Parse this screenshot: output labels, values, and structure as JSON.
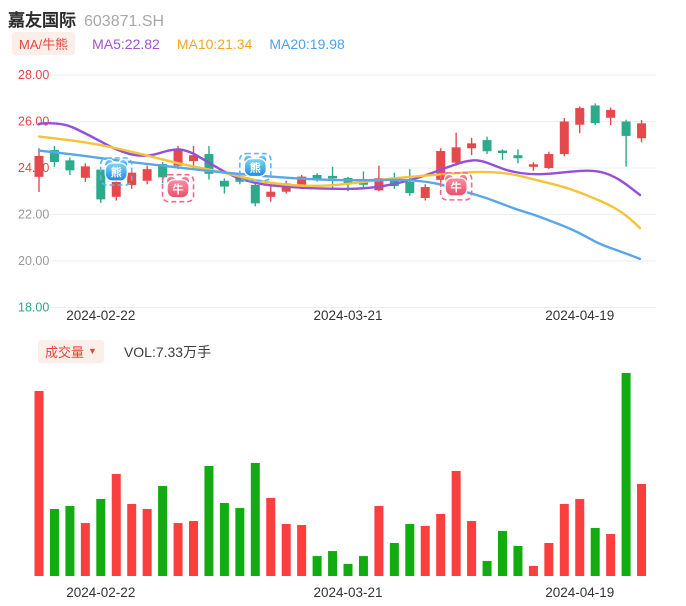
{
  "header": {
    "title": "嘉友国际",
    "code": "603871.SH"
  },
  "indicator_bar": {
    "badge": "MA/牛熊",
    "ma5_label": "MA5:22.82",
    "ma10_label": "MA10:21.34",
    "ma20_label": "MA20:19.98"
  },
  "volume_bar": {
    "badge": "成交量",
    "badge_arrow": "▼",
    "vol_label": "VOL:7.33万手"
  },
  "colors": {
    "candle_up": "#E5494B",
    "candle_down": "#2DA98C",
    "vol_up": "#FB3E3E",
    "vol_down": "#12AC12",
    "ma5": "#9450D8",
    "ma10": "#F4C338",
    "ma20": "#5AA7E8",
    "grid": "#ECEEF1",
    "axis_red": "#E54545",
    "axis_gray": "#999999",
    "axis_green": "#2FA28C",
    "date_label": "#333333",
    "bear_grad_top": "#7DD8FA",
    "bear_grad_bottom": "#1E88E5",
    "bear_frame": "#59B7F2",
    "bull_grad_top": "#F890A6",
    "bull_grad_bottom": "#E94F6B",
    "bull_frame": "#F2688C"
  },
  "chart_data": {
    "type": "candlestick+volume",
    "title": "嘉友国际 603871.SH",
    "price_axis": {
      "ylim": [
        18.0,
        28.0
      ],
      "ticks": [
        {
          "text": "28.00",
          "price": 28.0,
          "tone": "red"
        },
        {
          "text": "26.00",
          "price": 26.0,
          "tone": "red"
        },
        {
          "text": "24.00",
          "price": 24.0,
          "tone": "red"
        },
        {
          "text": "22.00",
          "price": 22.0,
          "tone": "gray"
        },
        {
          "text": "20.00",
          "price": 20.0,
          "tone": "gray"
        },
        {
          "text": "18.00",
          "price": 18.0,
          "tone": "green"
        }
      ]
    },
    "x_axis_labels": [
      {
        "text": "2024-02-22",
        "index": 4
      },
      {
        "text": "2024-03-21",
        "index": 20
      },
      {
        "text": "2024-04-19",
        "index": 35
      }
    ],
    "volume_unit": "万手",
    "last_volume_label": "VOL:7.33万手",
    "candles": [
      {
        "o": 23.62,
        "c": 24.52,
        "h": 24.85,
        "l": 22.97,
        "v": 14.74
      },
      {
        "o": 24.77,
        "c": 24.26,
        "h": 24.95,
        "l": 24.05,
        "v": 5.34
      },
      {
        "o": 24.33,
        "c": 23.9,
        "h": 24.45,
        "l": 23.7,
        "v": 5.58
      },
      {
        "o": 23.58,
        "c": 24.07,
        "h": 24.2,
        "l": 23.4,
        "v": 4.22
      },
      {
        "o": 23.93,
        "c": 22.65,
        "h": 24.05,
        "l": 22.5,
        "v": 6.14
      },
      {
        "o": 22.76,
        "c": 23.4,
        "h": 23.55,
        "l": 22.6,
        "v": 8.13
      },
      {
        "o": 23.27,
        "c": 23.8,
        "h": 24.0,
        "l": 23.1,
        "v": 5.74
      },
      {
        "o": 23.45,
        "c": 23.95,
        "h": 24.1,
        "l": 23.3,
        "v": 5.34
      },
      {
        "o": 24.17,
        "c": 23.6,
        "h": 24.25,
        "l": 23.35,
        "v": 7.17
      },
      {
        "o": 24.1,
        "c": 24.82,
        "h": 24.95,
        "l": 23.95,
        "v": 4.22
      },
      {
        "o": 24.3,
        "c": 24.55,
        "h": 24.95,
        "l": 23.9,
        "v": 4.38
      },
      {
        "o": 24.6,
        "c": 23.75,
        "h": 24.95,
        "l": 23.5,
        "v": 8.77
      },
      {
        "o": 23.45,
        "c": 23.2,
        "h": 23.55,
        "l": 22.9,
        "v": 5.82
      },
      {
        "o": 23.63,
        "c": 23.41,
        "h": 23.7,
        "l": 23.3,
        "v": 5.42
      },
      {
        "o": 23.27,
        "c": 22.48,
        "h": 23.35,
        "l": 22.35,
        "v": 9.01
      },
      {
        "o": 22.76,
        "c": 22.98,
        "h": 23.3,
        "l": 22.55,
        "v": 6.22
      },
      {
        "o": 22.98,
        "c": 23.34,
        "h": 23.45,
        "l": 22.9,
        "v": 4.14
      },
      {
        "o": 23.2,
        "c": 23.63,
        "h": 23.7,
        "l": 23.1,
        "v": 4.06
      },
      {
        "o": 23.7,
        "c": 23.5,
        "h": 23.78,
        "l": 23.42,
        "v": 1.59
      },
      {
        "o": 23.66,
        "c": 23.58,
        "h": 24.05,
        "l": 23.15,
        "v": 1.99
      },
      {
        "o": 23.57,
        "c": 23.36,
        "h": 23.62,
        "l": 23.0,
        "v": 0.96
      },
      {
        "o": 23.5,
        "c": 23.28,
        "h": 23.85,
        "l": 23.18,
        "v": 1.59
      },
      {
        "o": 23.04,
        "c": 23.56,
        "h": 24.1,
        "l": 23.0,
        "v": 5.58
      },
      {
        "o": 23.52,
        "c": 23.22,
        "h": 23.8,
        "l": 23.1,
        "v": 2.63
      },
      {
        "o": 23.4,
        "c": 22.92,
        "h": 23.95,
        "l": 22.8,
        "v": 4.14
      },
      {
        "o": 22.71,
        "c": 23.18,
        "h": 23.3,
        "l": 22.6,
        "v": 3.99
      },
      {
        "o": 23.49,
        "c": 24.73,
        "h": 24.85,
        "l": 23.4,
        "v": 4.94
      },
      {
        "o": 24.23,
        "c": 24.89,
        "h": 25.52,
        "l": 24.1,
        "v": 8.37
      },
      {
        "o": 24.85,
        "c": 25.06,
        "h": 25.3,
        "l": 24.55,
        "v": 4.38
      },
      {
        "o": 25.2,
        "c": 24.72,
        "h": 25.35,
        "l": 24.6,
        "v": 1.2
      },
      {
        "o": 24.75,
        "c": 24.65,
        "h": 24.8,
        "l": 24.35,
        "v": 3.59
      },
      {
        "o": 24.55,
        "c": 24.42,
        "h": 24.8,
        "l": 24.2,
        "v": 2.39
      },
      {
        "o": 24.1,
        "c": 24.16,
        "h": 24.25,
        "l": 23.88,
        "v": 0.8
      },
      {
        "o": 24.0,
        "c": 24.6,
        "h": 24.7,
        "l": 23.95,
        "v": 2.63
      },
      {
        "o": 24.6,
        "c": 26.0,
        "h": 26.15,
        "l": 24.5,
        "v": 5.74
      },
      {
        "o": 25.86,
        "c": 26.58,
        "h": 26.65,
        "l": 25.5,
        "v": 6.14
      },
      {
        "o": 26.69,
        "c": 25.93,
        "h": 26.78,
        "l": 25.85,
        "v": 3.83
      },
      {
        "o": 26.16,
        "c": 26.5,
        "h": 26.6,
        "l": 25.85,
        "v": 3.35
      },
      {
        "o": 26.0,
        "c": 25.38,
        "h": 26.08,
        "l": 24.06,
        "v": 16.18
      },
      {
        "o": 25.28,
        "c": 25.92,
        "h": 26.06,
        "l": 25.1,
        "v": 7.33
      }
    ],
    "ma_lines": [
      {
        "name": "MA5",
        "value_label": "MA5:22.82",
        "end_value": 22.82,
        "color": "ma5",
        "points": [
          [
            0,
            25.9
          ],
          [
            1.4,
            26.0
          ],
          [
            3.3,
            25.4
          ],
          [
            5.2,
            24.7
          ],
          [
            6.9,
            24.45
          ],
          [
            8.8,
            24.85
          ],
          [
            9.8,
            24.7
          ],
          [
            10.7,
            24.35
          ],
          [
            11.7,
            23.95
          ],
          [
            12.7,
            23.6
          ],
          [
            13.7,
            23.4
          ],
          [
            14.9,
            23.25
          ],
          [
            16.9,
            23.15
          ],
          [
            18.8,
            23.1
          ],
          [
            20.8,
            23.1
          ],
          [
            22.7,
            23.25
          ],
          [
            24.7,
            23.6
          ],
          [
            26.3,
            24.0
          ],
          [
            27.6,
            24.3
          ],
          [
            28.5,
            24.35
          ],
          [
            29.5,
            24.1
          ],
          [
            30.5,
            23.85
          ],
          [
            31.8,
            23.72
          ],
          [
            33.1,
            23.75
          ],
          [
            34.4,
            23.85
          ],
          [
            35.7,
            23.9
          ],
          [
            36.6,
            23.8
          ],
          [
            37.3,
            23.6
          ],
          [
            37.9,
            23.35
          ],
          [
            38.9,
            22.84
          ]
        ]
      },
      {
        "name": "MA10",
        "value_label": "MA10:21.34",
        "end_value": 21.34,
        "color": "ma10",
        "points": [
          [
            0,
            25.35
          ],
          [
            2,
            25.2
          ],
          [
            4,
            25.0
          ],
          [
            6,
            24.7
          ],
          [
            7.5,
            24.45
          ],
          [
            9,
            24.2
          ],
          [
            10.5,
            24.0
          ],
          [
            12,
            23.8
          ],
          [
            13.5,
            23.55
          ],
          [
            15,
            23.35
          ],
          [
            16.5,
            23.25
          ],
          [
            18,
            23.22
          ],
          [
            19.5,
            23.28
          ],
          [
            21,
            23.4
          ],
          [
            22.5,
            23.52
          ],
          [
            24,
            23.62
          ],
          [
            25.5,
            23.7
          ],
          [
            27,
            23.78
          ],
          [
            28.5,
            23.84
          ],
          [
            30,
            23.8
          ],
          [
            31,
            23.68
          ],
          [
            32,
            23.52
          ],
          [
            33,
            23.35
          ],
          [
            34,
            23.18
          ],
          [
            35,
            22.95
          ],
          [
            36,
            22.68
          ],
          [
            36.8,
            22.45
          ],
          [
            37.6,
            22.15
          ],
          [
            38.3,
            21.8
          ],
          [
            38.9,
            21.41
          ]
        ]
      },
      {
        "name": "MA20",
        "value_label": "MA20:19.98",
        "end_value": 19.98,
        "color": "ma20",
        "points": [
          [
            0,
            24.75
          ],
          [
            2,
            24.6
          ],
          [
            4,
            24.42
          ],
          [
            6,
            24.25
          ],
          [
            8,
            24.1
          ],
          [
            10,
            23.95
          ],
          [
            12,
            23.8
          ],
          [
            14,
            23.68
          ],
          [
            16,
            23.58
          ],
          [
            18,
            23.5
          ],
          [
            20,
            23.47
          ],
          [
            22,
            23.48
          ],
          [
            23.5,
            23.5
          ],
          [
            25,
            23.42
          ],
          [
            26,
            23.3
          ],
          [
            27,
            23.1
          ],
          [
            28,
            22.9
          ],
          [
            29,
            22.7
          ],
          [
            30,
            22.45
          ],
          [
            31,
            22.2
          ],
          [
            32,
            22.0
          ],
          [
            33,
            21.75
          ],
          [
            34,
            21.5
          ],
          [
            35,
            21.2
          ],
          [
            36.3,
            20.72
          ],
          [
            37.6,
            20.42
          ],
          [
            38.9,
            20.09
          ]
        ]
      }
    ],
    "markers": [
      {
        "kind": "bear",
        "char": "熊",
        "index": 5,
        "price": 23.85
      },
      {
        "kind": "bull",
        "char": "牛",
        "index": 9,
        "price": 23.13
      },
      {
        "kind": "bear",
        "char": "熊",
        "index": 14,
        "price": 24.04
      },
      {
        "kind": "bull",
        "char": "牛",
        "index": 27,
        "price": 23.21
      }
    ]
  }
}
